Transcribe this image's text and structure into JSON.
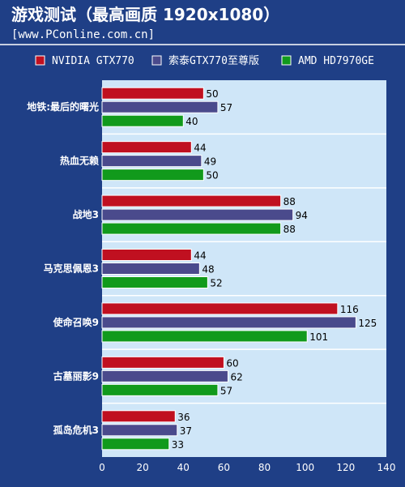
{
  "title": "游戏测试（最高画质 1920x1080）",
  "subtitle": "[www.PConline.com.cn]",
  "chart_data": {
    "type": "bar",
    "orientation": "horizontal",
    "categories": [
      "地铁:最后的曙光",
      "热血无赖",
      "战地3",
      "马克思佩恩3",
      "使命召唤9",
      "古墓丽影9",
      "孤岛危机3"
    ],
    "series": [
      {
        "name": "NVIDIA GTX770",
        "color": "#c01020",
        "values": [
          50,
          44,
          88,
          44,
          116,
          60,
          36
        ]
      },
      {
        "name": "索泰GTX770至尊版",
        "color": "#4a4a8c",
        "values": [
          57,
          49,
          94,
          48,
          125,
          62,
          37
        ]
      },
      {
        "name": "AMD HD7970GE",
        "color": "#119a1c",
        "values": [
          40,
          50,
          88,
          52,
          101,
          57,
          33
        ]
      }
    ],
    "xlim": [
      0,
      140
    ],
    "xticks": [
      0,
      20,
      40,
      60,
      80,
      100,
      120,
      140
    ],
    "legend_position": "top",
    "grid": false
  }
}
